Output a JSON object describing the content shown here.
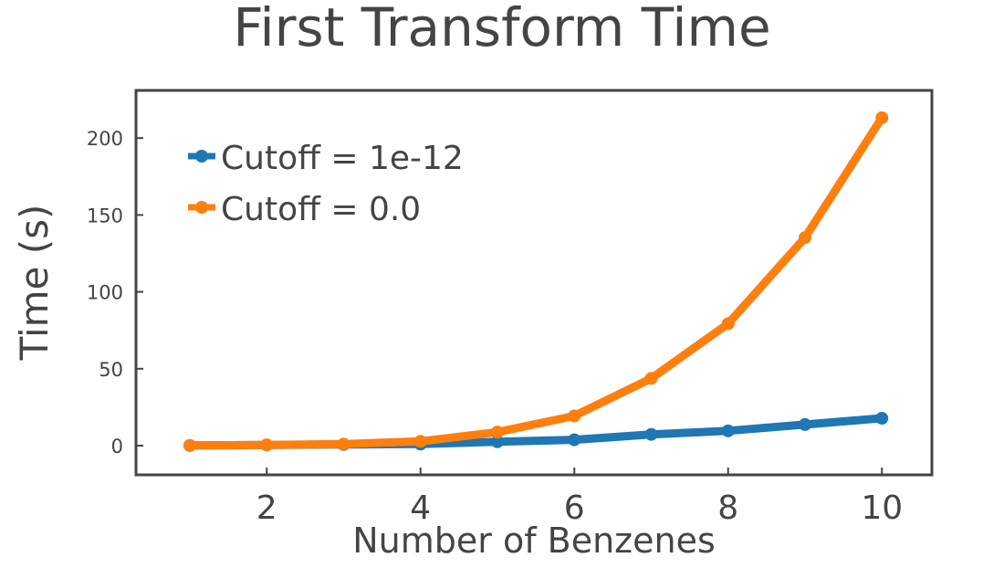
{
  "chart_data": {
    "type": "line",
    "title": "First Transform Time",
    "xlabel": "Number of Benzenes",
    "ylabel": "Time (s)",
    "x": [
      1,
      2,
      3,
      4,
      5,
      6,
      7,
      8,
      9,
      10
    ],
    "xlim": [
      0.3,
      10.65
    ],
    "ylim": [
      -19,
      231
    ],
    "xticks": [
      2,
      4,
      6,
      8,
      10
    ],
    "yticks": [
      0,
      50,
      100,
      150,
      200
    ],
    "grid": false,
    "legend_position": "top-left",
    "series": [
      {
        "name": "Cutoff = 1e-12",
        "color": "#1f77b4",
        "values": [
          0.1,
          0.4,
          0.7,
          1.0,
          2.5,
          3.8,
          7.3,
          9.6,
          13.7,
          17.8
        ]
      },
      {
        "name": "Cutoff = 0.0",
        "color": "#ff7f0e",
        "values": [
          0.1,
          0.5,
          1.0,
          2.8,
          8.8,
          19.3,
          43.7,
          79.3,
          135.3,
          213.2
        ]
      }
    ]
  }
}
